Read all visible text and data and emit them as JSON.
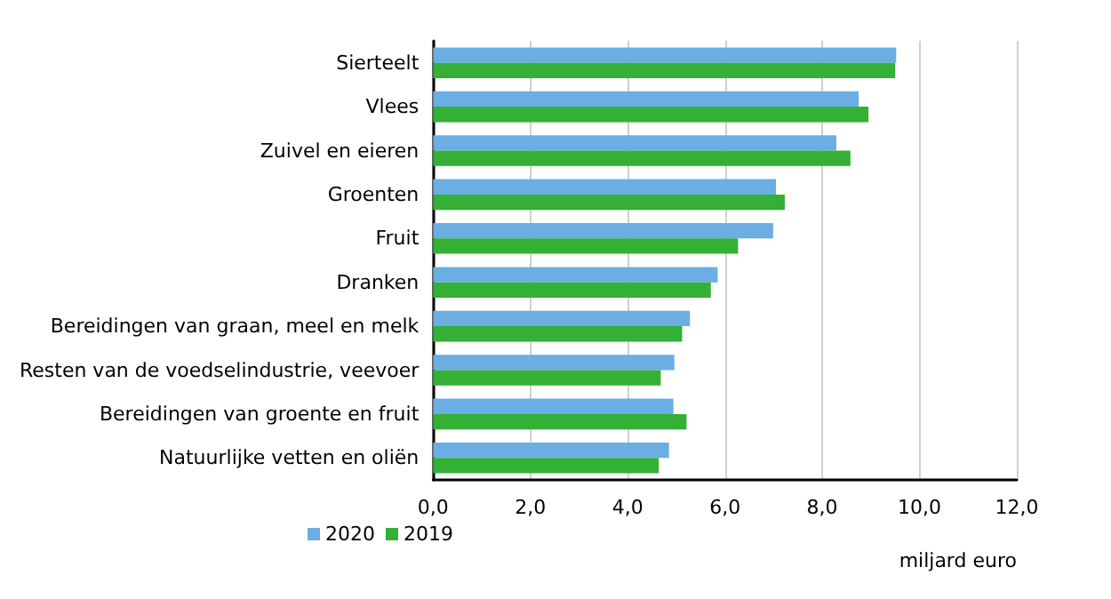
{
  "chart_data": {
    "type": "bar",
    "orientation": "horizontal",
    "categories": [
      "Sierteelt",
      "Vlees",
      "Zuivel en eieren",
      "Groenten",
      "Fruit",
      "Dranken",
      "Bereidingen van graan, meel en melk",
      "Resten van de voedselindustrie, veevoer",
      "Bereidingen van groente en fruit",
      "Natuurlijke vetten en oliën"
    ],
    "series": [
      {
        "name": "2020",
        "color": "#6aaee3",
        "values": [
          9.52,
          8.75,
          8.29,
          7.05,
          6.99,
          5.85,
          5.28,
          4.96,
          4.94,
          4.85
        ]
      },
      {
        "name": "2019",
        "color": "#33b035",
        "values": [
          9.5,
          8.95,
          8.58,
          7.23,
          6.27,
          5.71,
          5.12,
          4.68,
          5.21,
          4.64
        ]
      }
    ],
    "xlim": [
      0,
      12
    ],
    "xticks": [
      {
        "value": 0,
        "label": "0,0"
      },
      {
        "value": 2,
        "label": "2,0"
      },
      {
        "value": 4,
        "label": "4,0"
      },
      {
        "value": 6,
        "label": "6,0"
      },
      {
        "value": 8,
        "label": "8,0"
      },
      {
        "value": 10,
        "label": "10,0"
      },
      {
        "value": 12,
        "label": "12,0"
      }
    ],
    "xlabel": "miljard euro",
    "grid": "x",
    "legend": "bottom left"
  }
}
